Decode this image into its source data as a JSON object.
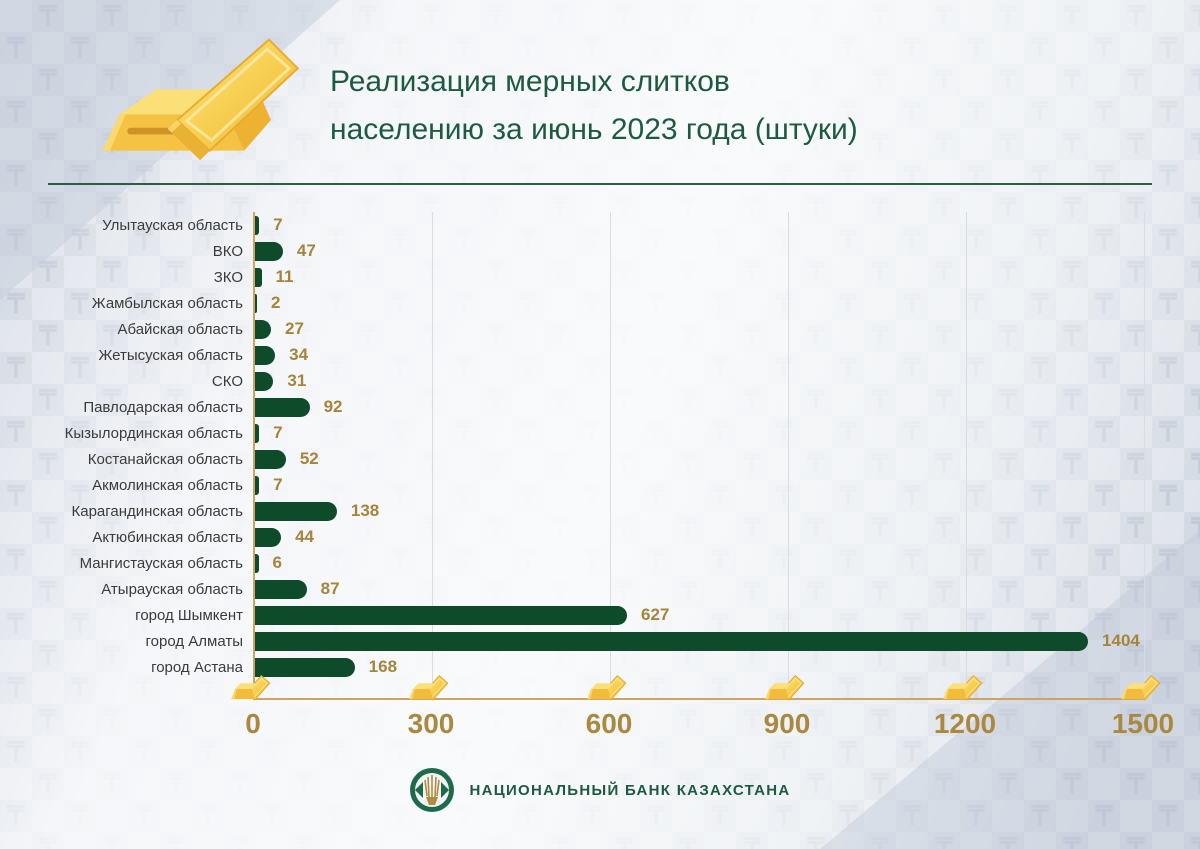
{
  "header": {
    "title_line1": "Реализация мерных слитков",
    "title_line2": "населению за июнь 2023 года (штуки)",
    "illustration_icon": "gold-bars-icon"
  },
  "background": {
    "watermark_glyph": "₸"
  },
  "footer": {
    "bank_name": "НАЦИОНАЛЬНЫЙ БАНК КАЗАХСТАНА",
    "logo_icon": "nbk-wheat-emblem-icon"
  },
  "colors": {
    "bar": "#0e4b2b",
    "title": "#1d5b40",
    "value_label": "#a5843c",
    "tick_label": "#aa8840",
    "axis": "#cfa463",
    "grid_line": "#d9dce2",
    "category_label": "#3b3b3b",
    "background_base": "#ccd3de"
  },
  "chart_data": {
    "type": "bar",
    "orientation": "horizontal",
    "title": "Реализация мерных слитков населению за июнь 2023 года (штуки)",
    "categories": [
      "Улытауская область",
      "ВКО",
      "ЗКО",
      "Жамбылская область",
      "Абайская область",
      "Жетысуская область",
      "СКО",
      "Павлодарская область",
      "Кызылординская область",
      "Костанайская область",
      "Акмолинская область",
      "Карагандинская область",
      "Актюбинская область",
      "Мангистауская область",
      "Атырауская область",
      "город Шымкент",
      "город Алматы",
      "город Астана"
    ],
    "values": [
      7,
      47,
      11,
      2,
      27,
      34,
      31,
      92,
      7,
      52,
      7,
      138,
      44,
      6,
      87,
      627,
      1404,
      168
    ],
    "x_ticks": [
      0,
      300,
      600,
      900,
      1200,
      1500
    ],
    "xlim": [
      0,
      1500
    ],
    "grid": "vertical",
    "value_labels_shown": true,
    "tick_icon": "gold-bars-icon",
    "legend": null
  }
}
